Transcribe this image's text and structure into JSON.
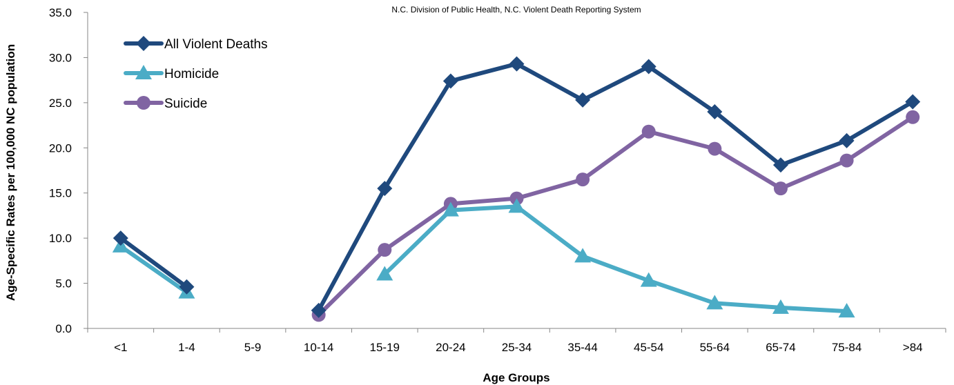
{
  "chart_data": {
    "type": "line",
    "source": "N.C. Division of Public Health, N.C. Violent Death Reporting System",
    "xlabel": "Age Groups",
    "ylabel": "Age-Specific Rates per 100,000 NC population",
    "categories": [
      "<1",
      "1-4",
      "5-9",
      "10-14",
      "15-19",
      "20-24",
      "25-34",
      "35-44",
      "45-54",
      "55-64",
      "65-74",
      "75-84",
      ">84"
    ],
    "ylim": [
      0,
      35
    ],
    "yticks": [
      "0.0",
      "5.0",
      "10.0",
      "15.0",
      "20.0",
      "25.0",
      "30.0",
      "35.0"
    ],
    "legend_position": "top-left",
    "grid": false,
    "series": [
      {
        "name": "All Violent Deaths",
        "color": "#1f497d",
        "marker": "diamond",
        "values": [
          10.0,
          4.6,
          null,
          2.0,
          15.5,
          27.4,
          29.3,
          25.3,
          29.0,
          24.0,
          18.1,
          20.8,
          25.1
        ]
      },
      {
        "name": "Homicide",
        "color": "#4bacc6",
        "marker": "triangle",
        "values": [
          9.1,
          4.0,
          null,
          null,
          6.0,
          13.1,
          13.5,
          8.0,
          5.3,
          2.8,
          2.3,
          1.9,
          null
        ]
      },
      {
        "name": "Suicide",
        "color": "#8064a2",
        "marker": "circle",
        "values": [
          null,
          null,
          null,
          1.5,
          8.7,
          13.8,
          14.4,
          16.5,
          21.8,
          19.9,
          15.5,
          18.6,
          23.4
        ]
      }
    ]
  }
}
